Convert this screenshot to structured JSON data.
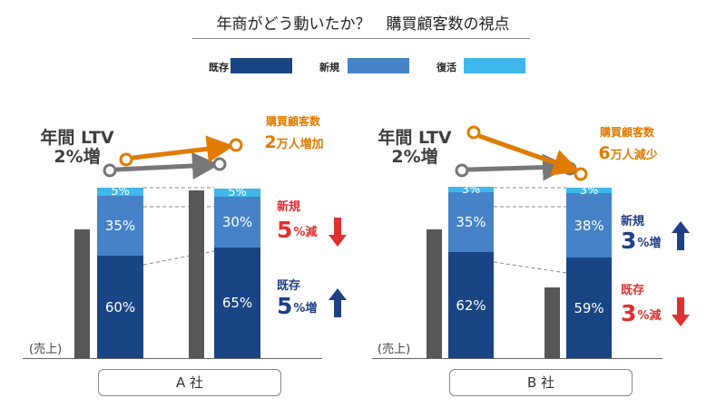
{
  "title": "年商がどう動いたか？　購買顧客数の視点",
  "legend": [
    {
      "label": "既存",
      "color": "#1a4584"
    },
    {
      "label": "新規",
      "color": "#4582c8"
    },
    {
      "label": "復活",
      "color": "#3fb7ea"
    }
  ],
  "colors": {
    "existing": "#1a4584",
    "new": "#4582c8",
    "revival": "#3fb7ea",
    "sales_bar": "#575757",
    "orange": "#e07b00",
    "gray_arrow": "#777777",
    "red": "#e03030",
    "blue": "#1f3f86"
  },
  "sales_label": "(売上)",
  "chart_data": [
    {
      "type": "bar",
      "company": "A 社",
      "ltv_label": "年間 LTV\n2%増",
      "customers": {
        "label": "購買顧客数",
        "value": "2",
        "unit": "万人増加",
        "direction": "up"
      },
      "sales": {
        "before": 100,
        "after": 130
      },
      "stacks": {
        "before": [
          {
            "segment": "既存",
            "value": 60,
            "label": "60%"
          },
          {
            "segment": "新規",
            "value": 35,
            "label": "35%"
          },
          {
            "segment": "復活",
            "value": 5,
            "label": "5%"
          }
        ],
        "after": [
          {
            "segment": "既存",
            "value": 65,
            "label": "65%"
          },
          {
            "segment": "新規",
            "value": 30,
            "label": "30%"
          },
          {
            "segment": "復活",
            "value": 5,
            "label": "5%"
          }
        ]
      },
      "changes": [
        {
          "label": "新規",
          "value": "5",
          "unit": "%減",
          "direction": "down"
        },
        {
          "label": "既存",
          "value": "5",
          "unit": "%増",
          "direction": "up"
        }
      ]
    },
    {
      "type": "bar",
      "company": "B 社",
      "ltv_label": "年間 LTV\n2%増",
      "customers": {
        "label": "購買顧客数",
        "value": "6",
        "unit": "万人減少",
        "direction": "down"
      },
      "sales": {
        "before": 100,
        "after": 55
      },
      "stacks": {
        "before": [
          {
            "segment": "既存",
            "value": 62,
            "label": "62%"
          },
          {
            "segment": "新規",
            "value": 35,
            "label": "35%"
          },
          {
            "segment": "復活",
            "value": 3,
            "label": "3%"
          }
        ],
        "after": [
          {
            "segment": "既存",
            "value": 59,
            "label": "59%"
          },
          {
            "segment": "新規",
            "value": 38,
            "label": "38%"
          },
          {
            "segment": "復活",
            "value": 3,
            "label": "3%"
          }
        ]
      },
      "changes": [
        {
          "label": "新規",
          "value": "3",
          "unit": "%増",
          "direction": "up"
        },
        {
          "label": "既存",
          "value": "3",
          "unit": "%減",
          "direction": "down"
        }
      ]
    }
  ]
}
